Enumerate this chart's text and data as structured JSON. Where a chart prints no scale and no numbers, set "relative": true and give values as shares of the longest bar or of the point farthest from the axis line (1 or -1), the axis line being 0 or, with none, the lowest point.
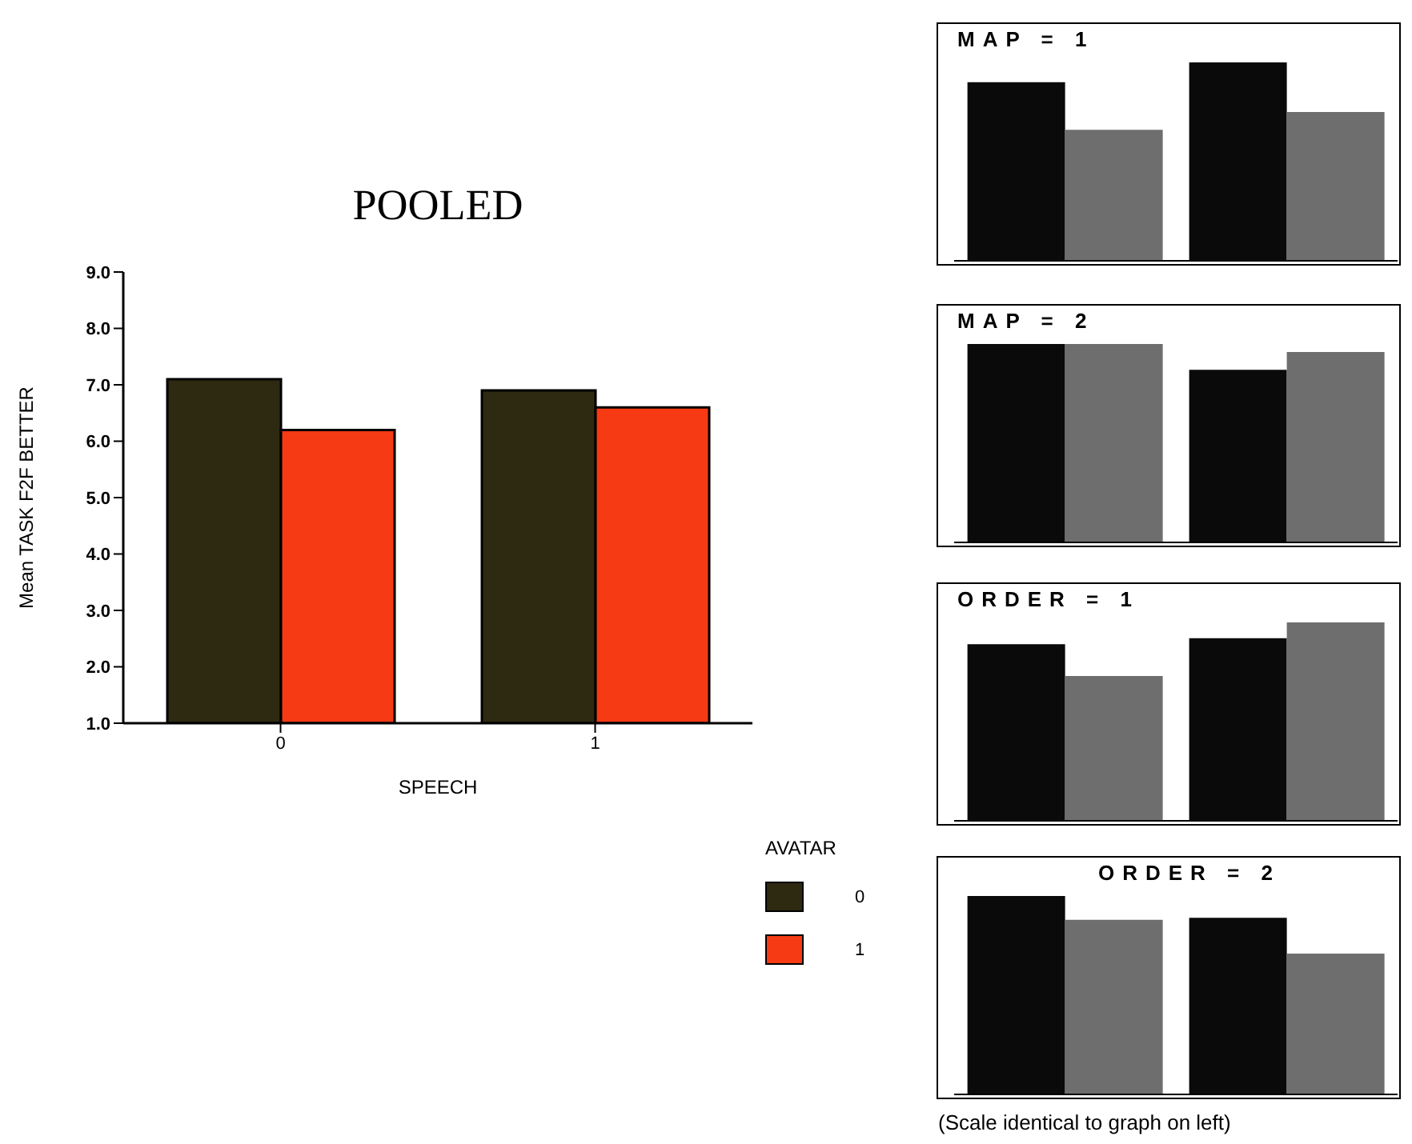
{
  "chart_data": [
    {
      "type": "bar",
      "title": "POOLED",
      "xlabel": "SPEECH",
      "ylabel": "Mean TASK F2F BETTER",
      "categories": [
        "0",
        "1"
      ],
      "series": [
        {
          "name": "0",
          "color": "#2e2a12",
          "values": [
            7.1,
            6.9
          ]
        },
        {
          "name": "1",
          "color": "#f53a14",
          "values": [
            6.2,
            6.6
          ]
        }
      ],
      "ylim": [
        1,
        9
      ],
      "yticks": [
        {
          "value": 1,
          "label": "1.0"
        },
        {
          "value": 2,
          "label": "2.0"
        },
        {
          "value": 3,
          "label": "3.0"
        },
        {
          "value": 4,
          "label": "4.0"
        },
        {
          "value": 5,
          "label": "5.0"
        },
        {
          "value": 6,
          "label": "6.0"
        },
        {
          "value": 7,
          "label": "7.0"
        },
        {
          "value": 8,
          "label": "8.0"
        },
        {
          "value": 9,
          "label": "9.0"
        }
      ],
      "legend": "right",
      "legend_title": "AVATAR"
    },
    {
      "type": "bar",
      "title": "MAP = 1",
      "relative": true,
      "categories": [
        null,
        null
      ],
      "series": [
        {
          "color": "#0a0a0a",
          "values": [
            0.9,
            1
          ]
        },
        {
          "color": "#6e6e6e",
          "values": [
            0.66,
            0.75
          ]
        }
      ]
    },
    {
      "type": "bar",
      "title": "MAP = 2",
      "relative": true,
      "categories": [
        null,
        null
      ],
      "series": [
        {
          "color": "#0a0a0a",
          "values": [
            1,
            0.87
          ]
        },
        {
          "color": "#6e6e6e",
          "values": [
            1,
            0.96
          ]
        }
      ]
    },
    {
      "type": "bar",
      "title": "ORDER = 1",
      "relative": true,
      "categories": [
        null,
        null
      ],
      "series": [
        {
          "color": "#0a0a0a",
          "values": [
            0.89,
            0.92
          ]
        },
        {
          "color": "#6e6e6e",
          "values": [
            0.73,
            1
          ]
        }
      ]
    },
    {
      "type": "bar",
      "title": "ORDER = 2",
      "relative": true,
      "categories": [
        null,
        null
      ],
      "series": [
        {
          "color": "#0a0a0a",
          "values": [
            1,
            0.89
          ]
        },
        {
          "color": "#6e6e6e",
          "values": [
            0.88,
            0.71
          ]
        }
      ],
      "annotations": [
        "(Scale identical to graph on left)"
      ]
    }
  ]
}
